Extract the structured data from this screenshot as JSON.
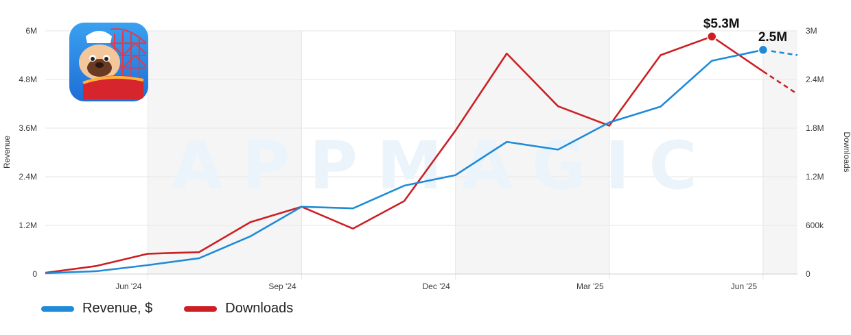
{
  "watermark": "APPMAGIC",
  "colors": {
    "revenue": "#1e8bd8",
    "downloads": "#cc1f24",
    "grid": "#e6e6e6",
    "shade": "#f5f5f5"
  },
  "app_icon": {
    "icon": "pug-rollercoaster-app-icon"
  },
  "chart_data": {
    "type": "line",
    "x": [
      "Apr '24",
      "May '24",
      "Jun '24",
      "Jul '24",
      "Aug '24",
      "Sep '24",
      "Oct '24",
      "Nov '24",
      "Dec '24",
      "Jan '25",
      "Feb '25",
      "Mar '25",
      "Apr '25",
      "May '25",
      "Jun '25",
      "Jul '25"
    ],
    "x_ticks": [
      "Jun '24",
      "Sep '24",
      "Dec '24",
      "Mar '25",
      "Jun '25"
    ],
    "series": [
      {
        "name": "Revenue, $",
        "axis": "left",
        "color": "#1e8bd8",
        "values": [
          0.02,
          0.07,
          0.22,
          0.39,
          0.93,
          1.66,
          1.62,
          2.18,
          2.44,
          3.26,
          3.07,
          3.74,
          4.13,
          5.26,
          5.53,
          null
        ],
        "forecast": {
          "from": "Jun '25",
          "to_value": 5.4
        }
      },
      {
        "name": "Downloads",
        "axis": "right",
        "color": "#cc1f24",
        "values": [
          0.015,
          0.1,
          0.25,
          0.27,
          0.64,
          0.83,
          0.56,
          0.9,
          1.77,
          2.72,
          2.07,
          1.83,
          2.7,
          2.93,
          2.5,
          null
        ],
        "forecast": {
          "from": "Jun '25",
          "to_value": 2.22
        }
      }
    ],
    "left_axis": {
      "title": "Revenue",
      "ticks": [
        "0",
        "1.2M",
        "2.4M",
        "3.6M",
        "4.8M",
        "6M"
      ],
      "range": [
        0,
        6
      ]
    },
    "right_axis": {
      "title": "Downloads",
      "ticks": [
        "0",
        "600k",
        "1.2M",
        "1.8M",
        "2.4M",
        "3M"
      ],
      "range": [
        0,
        3
      ]
    },
    "callouts": [
      {
        "label": "$5.3M",
        "series": "Downloads",
        "x": "May '25"
      },
      {
        "label": "2.5M",
        "series": "Revenue, $",
        "x": "Jun '25"
      }
    ],
    "grid": true,
    "legend_position": "bottom-left"
  },
  "legend": [
    {
      "label": "Revenue, $",
      "color": "#1e8bd8"
    },
    {
      "label": "Downloads",
      "color": "#cc1f24"
    }
  ]
}
